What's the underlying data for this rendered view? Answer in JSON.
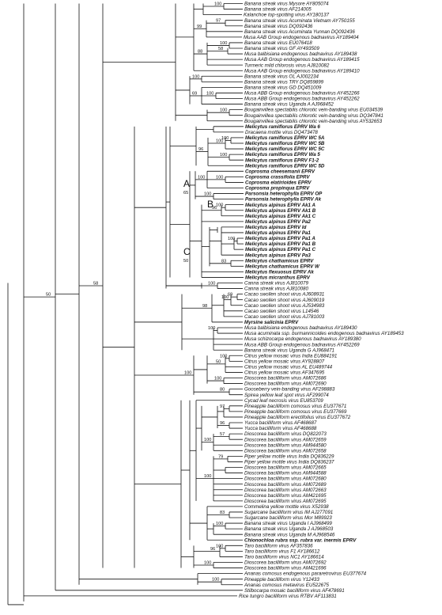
{
  "leaves": [
    {
      "label": "Banana streak virus Mysore AY805074",
      "bold": false
    },
    {
      "label": "Banana streak virus AF214005",
      "bold": false
    },
    {
      "label": "Kalanchoe top-spotting virus AY180137",
      "bold": false
    },
    {
      "label": "Banana streak virus Acuminata Vietnam AY750155",
      "bold": false
    },
    {
      "label": "Banana streak virus DQ092436",
      "bold": false
    },
    {
      "label": "Banana streak virus Acuminata Yunnan DQ092436",
      "bold": false
    },
    {
      "label": "Musa AAB Group endogenous badnavirus AY189404",
      "bold": false
    },
    {
      "label": "Banana streak virus EU076418",
      "bold": false
    },
    {
      "label": "Banana streak virus GF AY493509",
      "bold": false
    },
    {
      "label": "Musa balbisiana endogenous badnavirus AY189438",
      "bold": false
    },
    {
      "label": "Musa AAB Group endogenous badnavirus AY189415",
      "bold": false
    },
    {
      "label": "Turmeric mild chlorosis virus AJ810082",
      "bold": false
    },
    {
      "label": "Musa AAB Group endogenous badnavirus AY189410",
      "bold": false
    },
    {
      "label": "Banana streak virus OL AJ002234",
      "bold": false
    },
    {
      "label": "Banana streak virus TRY DQ859899",
      "bold": false
    },
    {
      "label": "Banana streak virus GD DQ451009",
      "bold": false
    },
    {
      "label": "Musa ABB Group endogenous badnavirus AY452266",
      "bold": false
    },
    {
      "label": "Musa ABB Group endogenous badnavirus AY452262",
      "bold": false
    },
    {
      "label": "Banana streak virus Uganda A AJ968452",
      "bold": false
    },
    {
      "label": "Bougainvillea spectabilis chlorotic vein-banding virus EU034539",
      "bold": false
    },
    {
      "label": "Bougainvillea spectabilis chlorotic vein-banding virus DQ347841",
      "bold": false
    },
    {
      "label": "Bougainvillea spectabilis chlorotic vein-banding virus AY532653",
      "bold": false
    },
    {
      "label": "Melicytus ramiflorus EPRV Wa 6",
      "bold": true
    },
    {
      "label": "Dracaena mottle virus DQ473478",
      "bold": false
    },
    {
      "label": "Melicytus ramiflorus EPRV WC 5A",
      "bold": true
    },
    {
      "label": "Melicytus ramiflorus EPRV WC 5B",
      "bold": true
    },
    {
      "label": "Melicytus ramiflorus EPRV WC 5C",
      "bold": true
    },
    {
      "label": "Melicytus ramiflorus EPRV Wa 5",
      "bold": true
    },
    {
      "label": "Melicytus ramiflorus EPRV F1-2",
      "bold": true
    },
    {
      "label": "Melicytus ramiflorus EPRV WC 5D",
      "bold": true
    },
    {
      "label": "Coprosma cheesemanii EPRV",
      "bold": true
    },
    {
      "label": "Coprosma crassifolia EPRV",
      "bold": true
    },
    {
      "label": "Coprosma elatirioides EPRV",
      "bold": true
    },
    {
      "label": "Coprosma propinqua EPRV",
      "bold": true
    },
    {
      "label": "Parsonsia heterophylla EPRV OP",
      "bold": true
    },
    {
      "label": "Parsonsia heterophylla EPRV Ak",
      "bold": true
    },
    {
      "label": "Melicytus alpinus EPRV Ak1 A",
      "bold": true
    },
    {
      "label": "Melicytus alpinus EPRV Ak1 B",
      "bold": true
    },
    {
      "label": "Melicytus alpinus EPRV Ak1 C",
      "bold": true
    },
    {
      "label": "Melicytus alpinus EPRV Pa2",
      "bold": true
    },
    {
      "label": "Melicytus alpinus EPRV Id",
      "bold": true
    },
    {
      "label": "Melicytus alpinus EPRV Pa1",
      "bold": true
    },
    {
      "label": "Melicytus alpinus EPRV Pa1 A",
      "bold": true
    },
    {
      "label": "Melicytus alpinus EPRV Pa1 B",
      "bold": true
    },
    {
      "label": "Melicytus alpinus EPRV Pa1 C",
      "bold": true
    },
    {
      "label": "Melicytus alpinus EPRV Pa3",
      "bold": true
    },
    {
      "label": "Melicytus chathamicus EPRV",
      "bold": true
    },
    {
      "label": "Melicytus chathamicus EPRV W",
      "bold": true
    },
    {
      "label": "Melicytus flexuosus EPRV Ak",
      "bold": true
    },
    {
      "label": "Melicytus micranthus EPRV",
      "bold": true
    },
    {
      "label": "Canna streak virus AJ810079",
      "bold": false
    },
    {
      "label": "Canna streak virus AJ810080",
      "bold": false
    },
    {
      "label": "Cacao swollen shoot virus AJ608931",
      "bold": false
    },
    {
      "label": "Cacao swollen shoot virus AJ609019",
      "bold": false
    },
    {
      "label": "Cacao swollen shoot virus AJ534983",
      "bold": false
    },
    {
      "label": "Cacao swollen shoot virus L14546",
      "bold": false
    },
    {
      "label": "Cacao swollen shoot virus AJ781003",
      "bold": false
    },
    {
      "label": "Myrsine salicinia EPRV",
      "bold": true
    },
    {
      "label": "Musa balbisiana endogenous badnavirus AY189430",
      "bold": false
    },
    {
      "label": "Musa acuminata ssp. burmannicoides endogenous badnavirus AY189453",
      "bold": false
    },
    {
      "label": "Musa schizocarpa endogenous badnavirus AY189380",
      "bold": false
    },
    {
      "label": "Musa ABB Group endogenous badnavirus AY452269",
      "bold": false
    },
    {
      "label": "Banana streak virus Uganda G AJ968471",
      "bold": false
    },
    {
      "label": "Citrus yellow mosaic virus India EU884191",
      "bold": false
    },
    {
      "label": "Citrus yellow mosaic virus AY928807",
      "bold": false
    },
    {
      "label": "Citrus yellow mosaic virus AL EU489744",
      "bold": false
    },
    {
      "label": "Citrus yellow mosaic virus AF347695",
      "bold": false
    },
    {
      "label": "Dioscorea bacilliform virus AM072686",
      "bold": false
    },
    {
      "label": "Dioscorea bacilliform virus AM072690",
      "bold": false
    },
    {
      "label": "Gooseberry vein-banding virus AF298883",
      "bold": false
    },
    {
      "label": "Spirea yellow leaf spot virus AF299074",
      "bold": false
    },
    {
      "label": "Cycad leaf necrosis virus EU853709",
      "bold": false
    },
    {
      "label": "Pineapple bacilliform comosus virus EU377671",
      "bold": false
    },
    {
      "label": "Pineapple bacilliform comosus virus EU377669",
      "bold": false
    },
    {
      "label": "Pineapple bacilliform erectifolius virus EU377672",
      "bold": false
    },
    {
      "label": "Yucca bacilliform virus AF468687",
      "bold": false
    },
    {
      "label": "Yucca bacilliform virus AF468688",
      "bold": false
    },
    {
      "label": "Dioscorea bacilliform virus DQ822073",
      "bold": false
    },
    {
      "label": "Dioscorea bacilliform virus AM072659",
      "bold": false
    },
    {
      "label": "Dioscorea bacilliform virus AM944580",
      "bold": false
    },
    {
      "label": "Dioscorea bacilliform virus AM072658",
      "bold": false
    },
    {
      "label": "Piper yellow mottle virus India DQ836229",
      "bold": false
    },
    {
      "label": "Piper yellow mottle virus India DQ836237",
      "bold": false
    },
    {
      "label": "Dioscorea bacilliform virus AM072665",
      "bold": false
    },
    {
      "label": "Dioscorea bacilliform virus AM944588",
      "bold": false
    },
    {
      "label": "Dioscorea bacilliform virus AM072680",
      "bold": false
    },
    {
      "label": "Dioscorea bacilliform virus AM072689",
      "bold": false
    },
    {
      "label": "Dioscorea bacilliform virus AM072663",
      "bold": false
    },
    {
      "label": "Dioscorea bacilliform virus AM421695",
      "bold": false
    },
    {
      "label": "Dioscorea bacilliform virus AM072695",
      "bold": false
    },
    {
      "label": "Commelina yellow mottle virus X52938",
      "bold": false
    },
    {
      "label": "Sugarcane bacilliform virus IM AJ277091",
      "bold": false
    },
    {
      "label": "Sugarcane bacilliform virus Mor M89923",
      "bold": false
    },
    {
      "label": "Banana streak virus Uganda I AJ968499",
      "bold": false
    },
    {
      "label": "Banana streak virus Uganda J AJ968503",
      "bold": false
    },
    {
      "label": "Banana streak virus Uganda M AJ968546",
      "bold": false
    },
    {
      "label": "Chionochloa rubra ssp. rubra var. inermis EPRV",
      "bold": true
    },
    {
      "label": "Taro bacilliform virus AF357836",
      "bold": false
    },
    {
      "label": "Taro bacilliform virus F1 AY186612",
      "bold": false
    },
    {
      "label": "Taro bacilliform virus NC1 AY186614",
      "bold": false
    },
    {
      "label": "Dioscorea bacilliform virus AM072692",
      "bold": false
    },
    {
      "label": "Dioscorea bacilliform virus AM421696",
      "bold": false
    },
    {
      "label": "Ananas comosus endogenous pararetrovirus EU377674",
      "bold": false
    },
    {
      "label": "Pineapple bacilliform virus Y12433",
      "bold": false
    },
    {
      "label": "Ananas comosus metavirus EU522675",
      "bold": false
    },
    {
      "label": "Stilbocarpa mosaic bacilliform virus AF478691",
      "bold": false
    },
    {
      "label": "Rice tungro bacilliform virus RTBV AF113831",
      "bold": false
    }
  ],
  "clade_labels": [
    {
      "label": "A",
      "support": "65"
    },
    {
      "label": "B",
      "support": ""
    },
    {
      "label": "C",
      "support": "50"
    }
  ],
  "bootstrap_values": [
    "100",
    "97",
    "99",
    "100",
    "58",
    "88",
    "100",
    "100",
    "69",
    "100",
    "100",
    "100",
    "100",
    "96",
    "100",
    "100",
    "100",
    "100",
    "96",
    "100",
    "83",
    "100",
    "69",
    "100",
    "98",
    "100",
    "100",
    "50",
    "100",
    "80",
    "100",
    "97",
    "96",
    "57",
    "100",
    "79",
    "100",
    "83",
    "100",
    "100",
    "96",
    "100",
    "58",
    "100",
    "50",
    "100",
    "100",
    "100",
    "100",
    "85",
    "57",
    "70"
  ]
}
